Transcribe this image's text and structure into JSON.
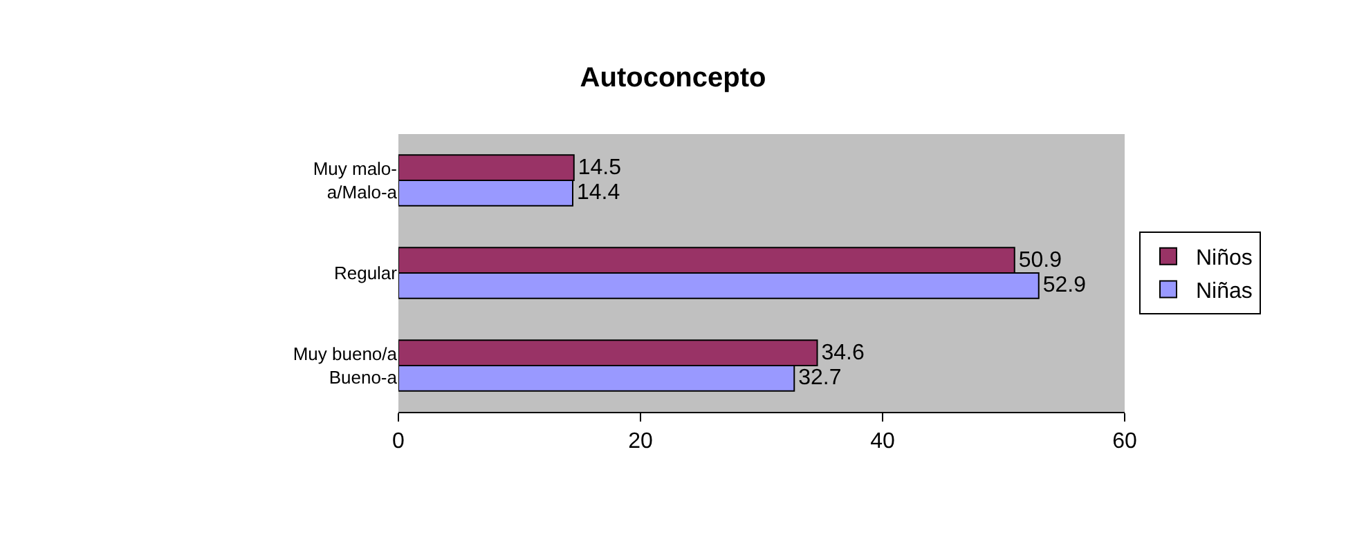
{
  "chart_data": {
    "type": "bar",
    "orientation": "horizontal",
    "title": "Autoconcepto",
    "categories": [
      "Muy malo-a/Malo-a",
      "Regular",
      "Muy bueno/a Bueno-a"
    ],
    "series": [
      {
        "name": "Niños",
        "color": "#993366",
        "values": [
          14.5,
          50.9,
          34.6
        ]
      },
      {
        "name": "Niñas",
        "color": "#9999ff",
        "values": [
          14.4,
          52.9,
          32.7
        ]
      }
    ],
    "xlim": [
      0,
      60
    ],
    "xticks": [
      0,
      20,
      40,
      60
    ],
    "grid": false,
    "legend": "right",
    "data_labels": true
  }
}
